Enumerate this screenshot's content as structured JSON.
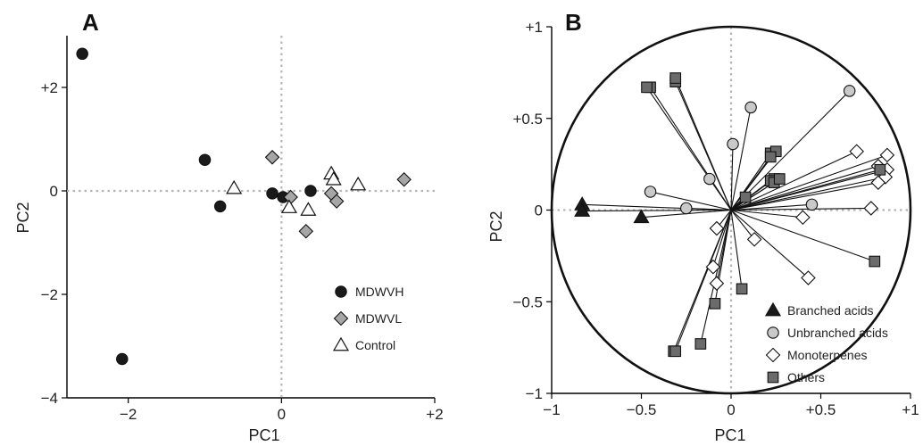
{
  "colors": {
    "dark": "#1a1a1a",
    "mid_gray": "#a6a6a6",
    "light_gray": "#c9c9c9",
    "square_gray": "#6b6b6b",
    "white": "#ffffff"
  },
  "chart_data": [
    {
      "type": "scatter",
      "panel_label": "A",
      "xlabel": "PC1",
      "ylabel": "PC2",
      "xlim": [
        -2.8,
        2.0
      ],
      "ylim": [
        -4.0,
        3.0
      ],
      "x_ticks": [
        -2,
        0,
        2
      ],
      "x_tick_labels": [
        "−2",
        "0",
        "+2"
      ],
      "y_ticks": [
        -4,
        -2,
        0,
        2
      ],
      "y_tick_labels": [
        "−4",
        "−2",
        "0",
        "+2"
      ],
      "grid": false,
      "zero_lines": true,
      "legend_position": "bottom-right",
      "series": [
        {
          "name": "MDWVH",
          "marker": "circle",
          "color": "#1a1a1a",
          "x": [
            -2.6,
            -1.0,
            -0.8,
            -0.12,
            0.02,
            0.38,
            -2.08
          ],
          "y": [
            2.65,
            0.6,
            -0.3,
            -0.05,
            -0.12,
            0.0,
            -3.25
          ]
        },
        {
          "name": "MDWVL",
          "marker": "diamond",
          "color": "#a6a6a6",
          "x": [
            -0.12,
            0.12,
            0.32,
            0.65,
            0.72,
            1.6
          ],
          "y": [
            0.65,
            -0.12,
            -0.78,
            -0.05,
            -0.2,
            0.22
          ]
        },
        {
          "name": "Control",
          "marker": "triangle",
          "color": "#ffffff",
          "x": [
            -0.62,
            0.1,
            0.35,
            0.65,
            0.68,
            1.0
          ],
          "y": [
            0.05,
            -0.32,
            -0.37,
            0.33,
            0.22,
            0.12
          ]
        }
      ]
    },
    {
      "type": "scatter",
      "panel_label": "B",
      "xlabel": "PC1",
      "ylabel": "PC2",
      "xlim": [
        -1.0,
        1.0
      ],
      "ylim": [
        -1.0,
        1.0
      ],
      "x_ticks": [
        -1,
        -0.5,
        0,
        0.5,
        1
      ],
      "x_tick_labels": [
        "−1",
        "−0.5",
        "0",
        "+0.5",
        "+1"
      ],
      "y_ticks": [
        -1,
        -0.5,
        0,
        0.5,
        1
      ],
      "y_tick_labels": [
        "−1",
        "−0.5",
        "0",
        "+0.5",
        "+1"
      ],
      "grid": false,
      "zero_lines": true,
      "unit_circle": true,
      "vectors_from_origin": true,
      "legend_position": "bottom-right",
      "series": [
        {
          "name": "Branched acids",
          "marker": "triangle",
          "color": "#1a1a1a",
          "x": [
            -0.83,
            -0.83,
            -0.5
          ],
          "y": [
            0.03,
            -0.005,
            -0.04
          ]
        },
        {
          "name": "Unbranched acids",
          "marker": "circle",
          "color": "#c9c9c9",
          "x": [
            -0.45,
            -0.25,
            -0.12,
            0.01,
            0.11,
            0.66,
            0.45
          ],
          "y": [
            0.1,
            0.01,
            0.17,
            0.36,
            0.56,
            0.65,
            0.03
          ]
        },
        {
          "name": "Monoterpenes",
          "marker": "diamond",
          "color": "#ffffff",
          "x": [
            -0.08,
            -0.1,
            -0.08,
            0.13,
            0.4,
            0.7,
            0.87,
            0.82,
            0.87,
            0.86,
            0.82,
            0.78,
            0.43
          ],
          "y": [
            -0.1,
            -0.31,
            -0.4,
            -0.16,
            -0.04,
            0.32,
            0.3,
            0.24,
            0.22,
            0.18,
            0.15,
            0.01,
            -0.37
          ]
        },
        {
          "name": "Others",
          "marker": "square",
          "color": "#6b6b6b",
          "x": [
            -0.31,
            -0.31,
            -0.45,
            -0.47,
            0.22,
            0.25,
            0.22,
            0.24,
            0.22,
            0.24,
            0.27,
            0.08,
            0.8,
            0.83,
            0.06,
            -0.09,
            -0.17,
            -0.32,
            -0.31
          ],
          "y": [
            0.7,
            0.72,
            0.67,
            0.67,
            0.31,
            0.32,
            0.29,
            0.17,
            0.16,
            0.15,
            0.17,
            0.07,
            -0.28,
            0.22,
            -0.43,
            -0.51,
            -0.73,
            -0.77,
            -0.77
          ]
        }
      ]
    }
  ]
}
